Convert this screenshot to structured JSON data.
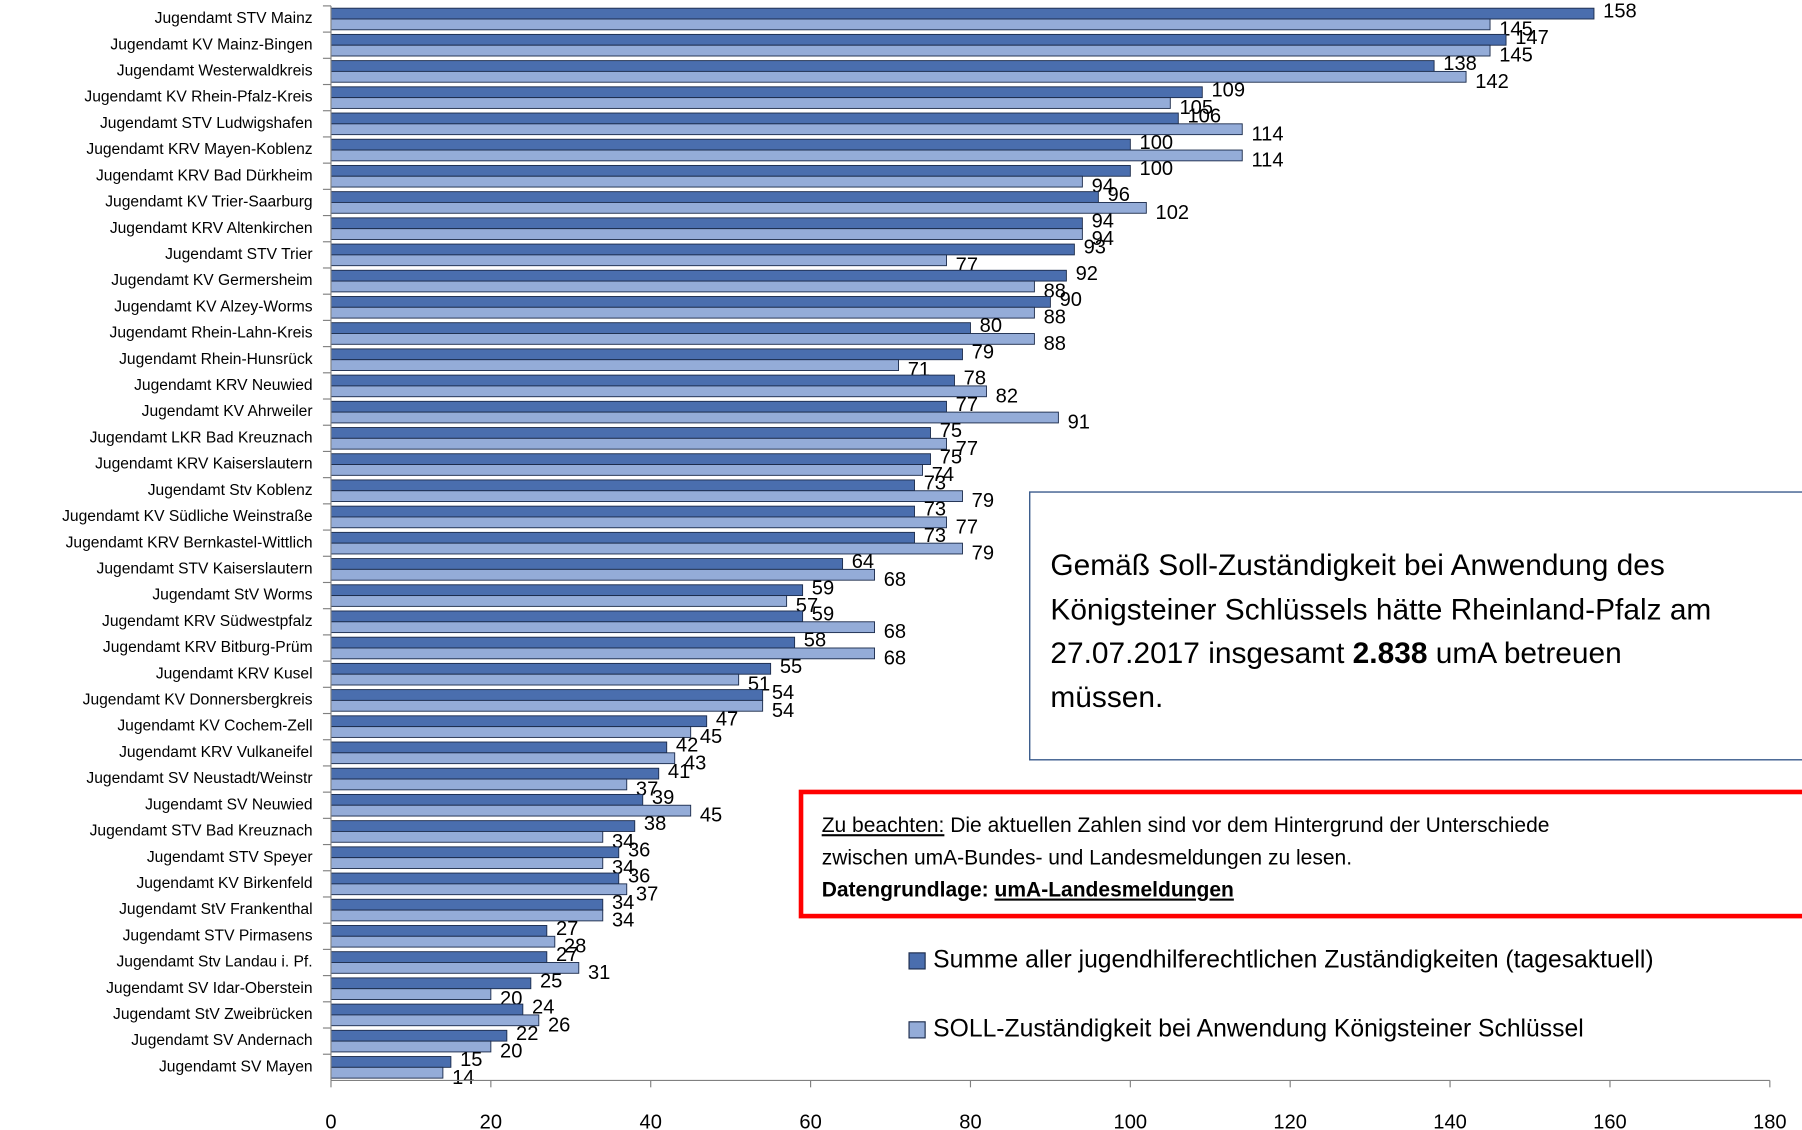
{
  "chart_data": {
    "type": "bar",
    "orientation": "horizontal",
    "categories": [
      "Jugendamt STV Mainz",
      "Jugendamt KV Mainz-Bingen",
      "Jugendamt Westerwaldkreis",
      "Jugendamt KV Rhein-Pfalz-Kreis",
      "Jugendamt STV Ludwigshafen",
      "Jugendamt KRV Mayen-Koblenz",
      "Jugendamt KRV Bad Dürkheim",
      "Jugendamt KV Trier-Saarburg",
      "Jugendamt KRV Altenkirchen",
      "Jugendamt STV Trier",
      "Jugendamt KV Germersheim",
      "Jugendamt KV Alzey-Worms",
      "Jugendamt Rhein-Lahn-Kreis",
      "Jugendamt Rhein-Hunsrück",
      "Jugendamt KRV Neuwied",
      "Jugendamt KV Ahrweiler",
      "Jugendamt LKR Bad Kreuznach",
      "Jugendamt KRV Kaiserslautern",
      "Jugendamt Stv Koblenz",
      "Jugendamt KV Südliche Weinstraße",
      "Jugendamt KRV Bernkastel-Wittlich",
      "Jugendamt STV Kaiserslautern",
      "Jugendamt StV Worms",
      "Jugendamt KRV Südwestpfalz",
      "Jugendamt KRV Bitburg-Prüm",
      "Jugendamt KRV Kusel",
      "Jugendamt KV Donnersbergkreis",
      "Jugendamt KV Cochem-Zell",
      "Jugendamt KRV Vulkaneifel",
      "Jugendamt SV Neustadt/Weinstr",
      "Jugendamt SV Neuwied",
      "Jugendamt STV Bad Kreuznach",
      "Jugendamt STV Speyer",
      "Jugendamt KV Birkenfeld",
      "Jugendamt StV Frankenthal",
      "Jugendamt STV Pirmasens",
      "Jugendamt Stv Landau i. Pf.",
      "Jugendamt SV Idar-Oberstein",
      "Jugendamt StV Zweibrücken",
      "Jugendamt SV Andernach",
      "Jugendamt SV Mayen"
    ],
    "series": [
      {
        "name": "Summe aller jugendhilferechtlichen Zuständigkeiten (tagesaktuell)",
        "color": "#4a6eae",
        "values": [
          158,
          147,
          138,
          109,
          106,
          100,
          100,
          96,
          94,
          93,
          92,
          90,
          80,
          79,
          78,
          77,
          75,
          75,
          73,
          73,
          73,
          64,
          59,
          59,
          58,
          55,
          54,
          47,
          42,
          41,
          39,
          38,
          36,
          36,
          34,
          27,
          27,
          25,
          24,
          22,
          15
        ]
      },
      {
        "name": "SOLL-Zuständigkeit bei Anwendung Königsteiner Schlüssel",
        "color": "#94acd8",
        "values": [
          145,
          145,
          142,
          105,
          114,
          114,
          94,
          102,
          94,
          77,
          88,
          88,
          88,
          71,
          82,
          91,
          77,
          74,
          79,
          77,
          79,
          68,
          57,
          68,
          68,
          51,
          54,
          45,
          43,
          37,
          45,
          34,
          34,
          37,
          34,
          28,
          31,
          20,
          26,
          20,
          14
        ]
      }
    ],
    "xlim": [
      0,
      180
    ],
    "xticks": [
      0,
      20,
      40,
      60,
      80,
      100,
      120,
      140,
      160,
      180
    ],
    "annotation": {
      "lines": [
        "Gemäß Soll-Zuständigkeit bei Anwendung des",
        "Königsteiner Schlüssels hätte Rheinland-Pfalz am",
        "27.07.2017 insgesamt ",
        "2.838",
        " umA betreuen",
        "müssen."
      ]
    },
    "notice": {
      "label": "Zu beachten:",
      "text1": " Die aktuellen Zahlen sind vor dem Hintergrund der Unterschiede",
      "text2": "zwischen umA-Bundes- und Landesmeldungen zu lesen.",
      "source_label": "Datengrundlage: ",
      "source": "umA-Landesmeldungen",
      "border_color": "#ff0000"
    }
  }
}
